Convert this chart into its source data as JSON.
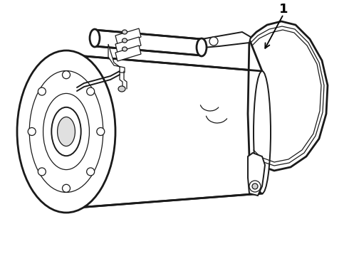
{
  "background_color": "#ffffff",
  "line_color": "#1a1a1a",
  "label_color": "#000000",
  "label_number": "1",
  "figsize": [
    4.9,
    3.6
  ],
  "dpi": 100,
  "lw_main": 2.0,
  "lw_med": 1.4,
  "lw_thin": 0.9
}
